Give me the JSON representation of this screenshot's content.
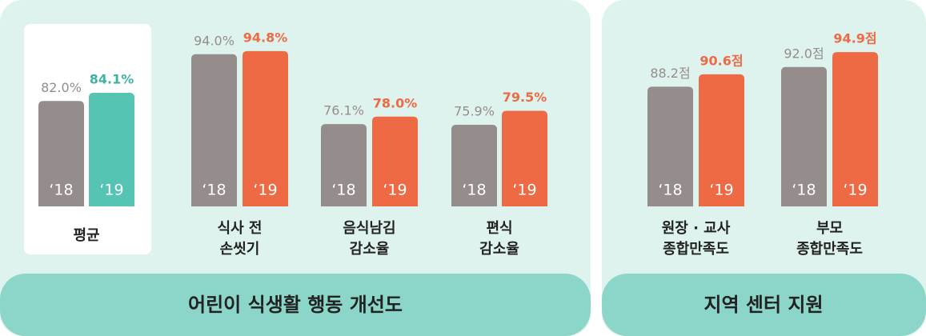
{
  "chart_data": [
    {
      "type": "bar",
      "title": "어린이 식생활 행동 개선도",
      "categories": [
        [
          "평균"
        ],
        [
          "식사 전",
          "손씻기"
        ],
        [
          "음식남김",
          "감소율"
        ],
        [
          "편식",
          "감소율"
        ]
      ],
      "ylim": [
        55,
        96
      ],
      "series": [
        {
          "name": "‘18",
          "color": "#958d8c",
          "colors": [
            "#958d8c",
            "#958d8c",
            "#958d8c",
            "#958d8c"
          ],
          "label_colors": [
            "#958d8c",
            "#958d8c",
            "#958d8c",
            "#958d8c"
          ],
          "values": [
            82.0,
            94.0,
            76.1,
            75.9
          ],
          "value_labels": [
            "82.0%",
            "94.0%",
            "76.1%",
            "75.9%"
          ]
        },
        {
          "name": "‘19",
          "color": "#ee6a45",
          "colors": [
            "#55c4b3",
            "#ee6a45",
            "#ee6a45",
            "#ee6a45"
          ],
          "label_colors": [
            "#3fb2a0",
            "#ee6a45",
            "#ee6a45",
            "#ee6a45"
          ],
          "values": [
            84.1,
            94.8,
            78.0,
            79.5
          ],
          "value_labels": [
            "84.1%",
            "94.8%",
            "78.0%",
            "79.5%"
          ]
        }
      ]
    },
    {
      "type": "bar",
      "title": "지역 센터 지원",
      "categories": [
        [
          "원장 · 교사",
          "종합만족도"
        ],
        [
          "부모",
          "종합만족도"
        ]
      ],
      "ylim": [
        65,
        96
      ],
      "series": [
        {
          "name": "‘18",
          "color": "#958d8c",
          "colors": [
            "#958d8c",
            "#958d8c"
          ],
          "label_colors": [
            "#958d8c",
            "#958d8c"
          ],
          "values": [
            88.2,
            92.0
          ],
          "value_labels": [
            "88.2점",
            "92.0점"
          ]
        },
        {
          "name": "‘19",
          "color": "#ee6a45",
          "colors": [
            "#ee6a45",
            "#ee6a45"
          ],
          "label_colors": [
            "#ee6a45",
            "#ee6a45"
          ],
          "values": [
            90.6,
            94.9
          ],
          "value_labels": [
            "90.6점",
            "94.9점"
          ]
        }
      ]
    }
  ]
}
